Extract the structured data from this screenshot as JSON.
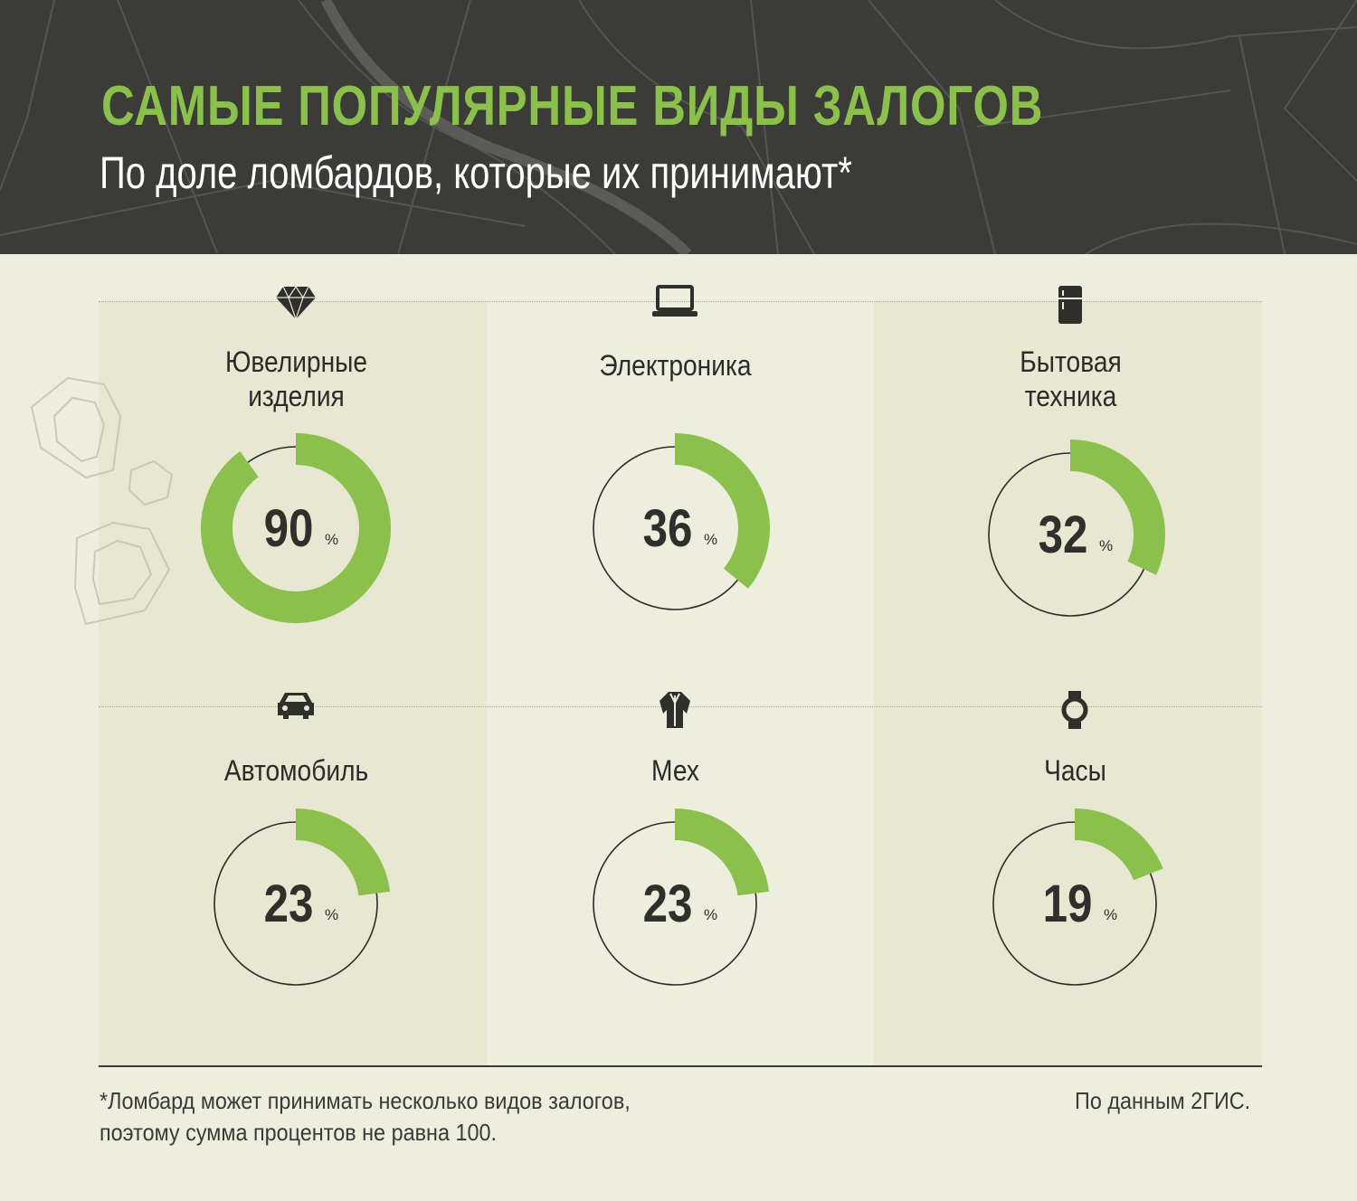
{
  "header": {
    "title": "САМЫЕ ПОПУЛЯРНЫЕ ВИДЫ ЗАЛОГОВ",
    "subtitle": "По доле ломбардов, которые их принимают*"
  },
  "colors": {
    "accent": "#8bc04c",
    "header_bg": "#3b3c37",
    "background": "#eeeedf",
    "text": "#2b2b28"
  },
  "chart_data": {
    "type": "pie",
    "title": "САМЫЕ ПОПУЛЯРНЫЕ ВИДЫ ЗАЛОГОВ",
    "subtitle": "По доле ломбардов, которые их принимают*",
    "unit": "%",
    "items": [
      {
        "label_lines": [
          "Ювелирные",
          "изделия"
        ],
        "value": 90,
        "display": "90",
        "icon": "diamond-icon"
      },
      {
        "label_lines": [
          "Электроника"
        ],
        "value": 36,
        "display": "36",
        "icon": "laptop-icon"
      },
      {
        "label_lines": [
          "Бытовая",
          "техника"
        ],
        "value": 32,
        "display": "32",
        "icon": "fridge-icon"
      },
      {
        "label_lines": [
          "Автомобиль"
        ],
        "value": 23,
        "display": "23",
        "icon": "car-icon"
      },
      {
        "label_lines": [
          "Мех"
        ],
        "value": 23,
        "display": "23",
        "icon": "fur-coat-icon"
      },
      {
        "label_lines": [
          "Часы"
        ],
        "value": 19,
        "display": "19",
        "icon": "watch-icon"
      }
    ]
  },
  "footer": {
    "note_line1": "*Ломбард может принимать несколько видов залогов,",
    "note_line2": "поэтому сумма процентов не равна 100.",
    "source": "По данным 2ГИС."
  }
}
